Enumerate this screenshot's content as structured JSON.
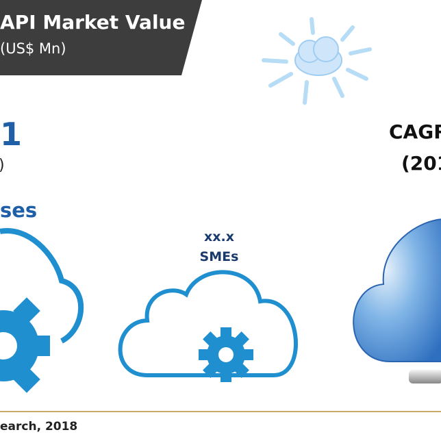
{
  "header": {
    "title": "API Market Value",
    "subtitle": "(US$ Mn)"
  },
  "left": {
    "value": "1",
    "unit": ")",
    "label": "ses"
  },
  "middle": {
    "value": "xx.x",
    "label": "SMEs"
  },
  "right": {
    "label": "CAGR",
    "period": "(201"
  },
  "footer": {
    "source": "earch, 2018"
  }
}
